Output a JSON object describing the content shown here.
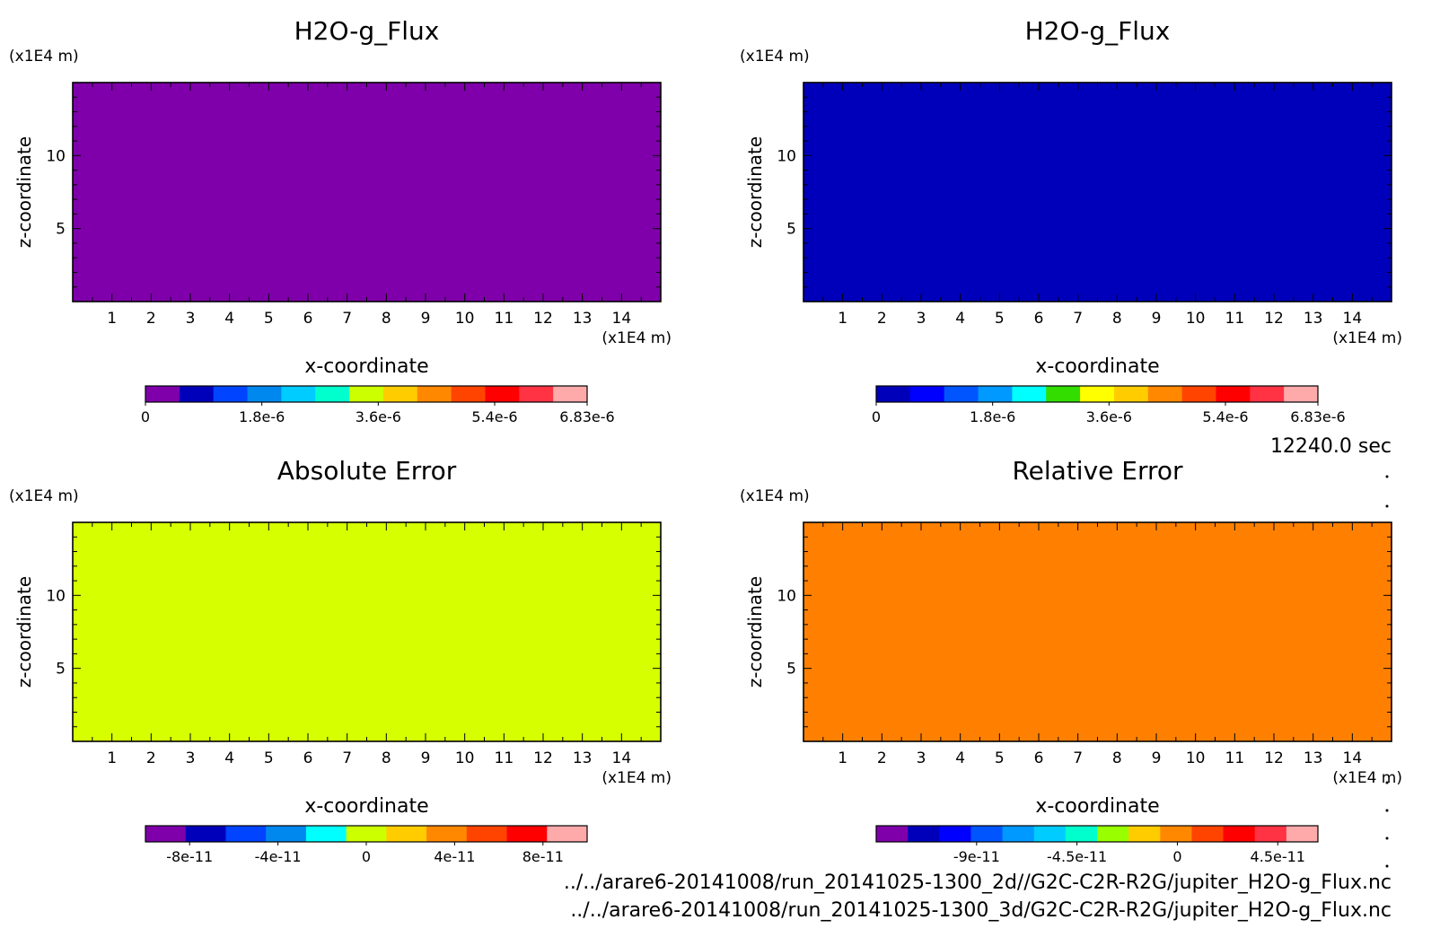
{
  "time_label": "12240.0 sec",
  "file_paths": [
    "../../arare6-20141008/run_20141025-1300_2d//G2C-C2R-R2G/jupiter_H2O-g_Flux.nc",
    "../../arare6-20141008/run_20141025-1300_3d/G2C-C2R-R2G/jupiter_H2O-g_Flux.nc"
  ],
  "chart_data": [
    {
      "type": "heatmap",
      "title": "H2O-g_Flux",
      "xlabel": "x-coordinate",
      "ylabel": "z-coordinate",
      "x_unit": "(x1E4 m)",
      "y_unit": "(x1E4 m)",
      "x_ticks": [
        1,
        2,
        3,
        4,
        5,
        6,
        7,
        8,
        9,
        10,
        11,
        12,
        13,
        14
      ],
      "y_ticks": [
        5,
        10
      ],
      "xlim": [
        0,
        15
      ],
      "ylim": [
        0,
        15
      ],
      "field_value": 0,
      "fill_color": "#7f00aa",
      "colorbar": {
        "colors": [
          "#7f00aa",
          "#0000bb",
          "#0044ff",
          "#0088ee",
          "#00ccff",
          "#00ffcc",
          "#ccff00",
          "#ffcc00",
          "#ff8800",
          "#ff4400",
          "#ff0000",
          "#ff3344",
          "#ffaaaa"
        ],
        "tick_labels": [
          "0",
          "1.8e-6",
          "3.6e-6",
          "5.4e-6",
          "6.83e-6"
        ],
        "tick_values": [
          0,
          1.8e-06,
          3.6e-06,
          5.4e-06,
          6.83e-06
        ],
        "range": [
          0,
          6.83e-06
        ]
      }
    },
    {
      "type": "heatmap",
      "title": "H2O-g_Flux",
      "xlabel": "x-coordinate",
      "ylabel": "z-coordinate",
      "x_unit": "(x1E4 m)",
      "y_unit": "(x1E4 m)",
      "x_ticks": [
        1,
        2,
        3,
        4,
        5,
        6,
        7,
        8,
        9,
        10,
        11,
        12,
        13,
        14
      ],
      "y_ticks": [
        5,
        10
      ],
      "xlim": [
        0,
        15
      ],
      "ylim": [
        0,
        15
      ],
      "field_value": 0,
      "fill_color": "#0000bb",
      "colorbar": {
        "colors": [
          "#0000bb",
          "#0000ff",
          "#0055ff",
          "#0099ff",
          "#00ffff",
          "#33dd00",
          "#ffff00",
          "#ffcc00",
          "#ff8800",
          "#ff4400",
          "#ff0000",
          "#ff3344",
          "#ffaaaa"
        ],
        "tick_labels": [
          "0",
          "1.8e-6",
          "3.6e-6",
          "5.4e-6",
          "6.83e-6"
        ],
        "tick_values": [
          0,
          1.8e-06,
          3.6e-06,
          5.4e-06,
          6.83e-06
        ],
        "range": [
          0,
          6.83e-06
        ]
      }
    },
    {
      "type": "heatmap",
      "title": "Absolute Error",
      "xlabel": "x-coordinate",
      "ylabel": "z-coordinate",
      "x_unit": "(x1E4 m)",
      "y_unit": "(x1E4 m)",
      "x_ticks": [
        1,
        2,
        3,
        4,
        5,
        6,
        7,
        8,
        9,
        10,
        11,
        12,
        13,
        14
      ],
      "y_ticks": [
        5,
        10
      ],
      "xlim": [
        0,
        15
      ],
      "ylim": [
        0,
        15
      ],
      "field_value": 0,
      "fill_color": "#d6ff00",
      "colorbar": {
        "colors": [
          "#7f00aa",
          "#0000bb",
          "#0044ff",
          "#0088ee",
          "#00ffff",
          "#ccff00",
          "#ffcc00",
          "#ff8800",
          "#ff4400",
          "#ff0000",
          "#ffaaaa"
        ],
        "tick_labels": [
          "-8e-11",
          "-4e-11",
          "0",
          "4e-11",
          "8e-11"
        ],
        "tick_values": [
          -8e-11,
          -4e-11,
          0,
          4e-11,
          8e-11
        ],
        "range": [
          -1e-10,
          1e-10
        ]
      }
    },
    {
      "type": "heatmap",
      "title": "Relative Error",
      "xlabel": "x-coordinate",
      "ylabel": "z-coordinate",
      "x_unit": "(x1E4 m)",
      "y_unit": "(x1E4 m)",
      "x_ticks": [
        1,
        2,
        3,
        4,
        5,
        6,
        7,
        8,
        9,
        10,
        11,
        12,
        13,
        14
      ],
      "y_ticks": [
        5,
        10
      ],
      "xlim": [
        0,
        15
      ],
      "ylim": [
        0,
        15
      ],
      "field_value": 0,
      "fill_color": "#ff8000",
      "colorbar": {
        "colors": [
          "#7f00aa",
          "#0000bb",
          "#0000ff",
          "#0055ff",
          "#0099ff",
          "#00ccff",
          "#00ffcc",
          "#99ff00",
          "#ffcc00",
          "#ff8800",
          "#ff4400",
          "#ff0000",
          "#ff3344",
          "#ffaaaa"
        ],
        "tick_labels": [
          "-9e-11",
          "-4.5e-11",
          "0",
          "4.5e-11"
        ],
        "tick_values": [
          -9e-11,
          -4.5e-11,
          0,
          4.5e-11
        ],
        "range": [
          -1.35e-10,
          6.3e-11
        ]
      }
    }
  ]
}
